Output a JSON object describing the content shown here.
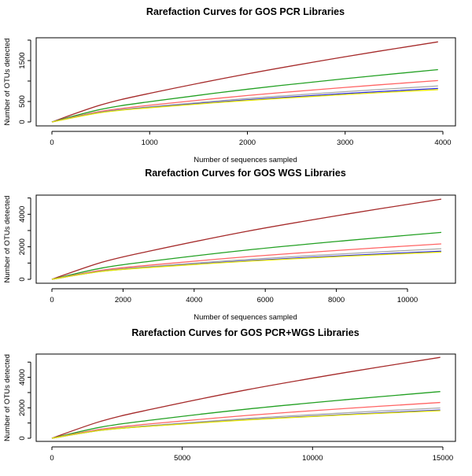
{
  "colors": {
    "brown": "#a52a2a",
    "green": "#22a022",
    "red": "#ff6464",
    "gray": "#a8a8a8",
    "blue": "#2828f0",
    "yellow": "#e6e600"
  },
  "chart_data": [
    {
      "type": "line",
      "title": "Rarefaction Curves for GOS PCR Libraries",
      "xlabel": "Number of sequences sampled",
      "ylabel": "Number of OTUs detected",
      "xticks": [
        0,
        1000,
        2000,
        3000,
        4000
      ],
      "xtick_labels": [
        "0",
        "1000",
        "2000",
        "3000",
        "4000"
      ],
      "yticks": [
        0,
        500,
        1000,
        1500,
        2000
      ],
      "ytick_labels": [
        "0",
        "500",
        "",
        "1500",
        ""
      ],
      "xlim": [
        0,
        4000
      ],
      "ylim": [
        0,
        2000
      ],
      "grid": false,
      "x": [
        0,
        500,
        1000,
        2000,
        3000,
        3950
      ],
      "series": [
        {
          "color": "brown",
          "values": [
            0,
            415,
            699,
            1175,
            1594,
            1958
          ]
        },
        {
          "color": "green",
          "values": [
            0,
            307,
            496,
            799,
            1058,
            1279
          ]
        },
        {
          "color": "red",
          "values": [
            0,
            259,
            409,
            646,
            844,
            1012
          ]
        },
        {
          "color": "gray",
          "values": [
            0,
            239,
            370,
            573,
            740,
            880
          ]
        },
        {
          "color": "blue",
          "values": [
            0,
            232,
            355,
            541,
            694,
            820
          ]
        },
        {
          "color": "yellow",
          "values": [
            0,
            228,
            347,
            525,
            670,
            790
          ]
        }
      ]
    },
    {
      "type": "line",
      "title": "Rarefaction Curves for GOS WGS Libraries",
      "xlabel": "Number of sequences sampled",
      "ylabel": "Number of OTUs detected",
      "xticks": [
        0,
        2000,
        4000,
        6000,
        8000,
        10000
      ],
      "xtick_labels": [
        "0",
        "2000",
        "4000",
        "6000",
        "8000",
        "10000"
      ],
      "yticks": [
        0,
        1000,
        2000,
        3000,
        4000,
        5000
      ],
      "ytick_labels": [
        "0",
        "",
        "2000",
        "",
        "4000",
        ""
      ],
      "xlim": [
        0,
        10950
      ],
      "ylim": [
        0,
        5000
      ],
      "grid": false,
      "x": [
        0,
        1400,
        2800,
        5500,
        8300,
        10950
      ],
      "series": [
        {
          "color": "brown",
          "values": [
            0,
            1045,
            1760,
            2958,
            4013,
            4930
          ]
        },
        {
          "color": "green",
          "values": [
            0,
            692,
            1119,
            1803,
            2385,
            2884
          ]
        },
        {
          "color": "red",
          "values": [
            0,
            557,
            880,
            1389,
            1816,
            2177
          ]
        },
        {
          "color": "gray",
          "values": [
            0,
            511,
            791,
            1223,
            1580,
            1879
          ]
        },
        {
          "color": "blue",
          "values": [
            0,
            490,
            749,
            1142,
            1464,
            1730
          ]
        },
        {
          "color": "yellow",
          "values": [
            0,
            484,
            735,
            1113,
            1420,
            1674
          ]
        }
      ]
    },
    {
      "type": "line",
      "title": "Rarefaction Curves for GOS PCR+WGS Libraries",
      "xlabel": "Number of sequences sampled",
      "ylabel": "Number of OTUs detected",
      "xticks": [
        0,
        5000,
        10000,
        15000
      ],
      "xtick_labels": [
        "0",
        "5000",
        "10000",
        "15000"
      ],
      "yticks": [
        0,
        1000,
        2000,
        3000,
        4000,
        5000
      ],
      "ytick_labels": [
        "0",
        "",
        "2000",
        "",
        "4000",
        ""
      ],
      "xlim": [
        0,
        15000
      ],
      "ylim": [
        0,
        5000
      ],
      "grid": false,
      "x": [
        0,
        1900,
        3800,
        7500,
        11300,
        14900
      ],
      "series": [
        {
          "color": "brown",
          "values": [
            0,
            1126,
            1897,
            3188,
            4325,
            5313
          ]
        },
        {
          "color": "green",
          "values": [
            0,
            736,
            1189,
            1916,
            2535,
            3065
          ]
        },
        {
          "color": "red",
          "values": [
            0,
            601,
            949,
            1498,
            1958,
            2348
          ]
        },
        {
          "color": "gray",
          "values": [
            0,
            541,
            838,
            1295,
            1674,
            1990
          ]
        },
        {
          "color": "blue",
          "values": [
            0,
            524,
            801,
            1221,
            1565,
            1850
          ]
        },
        {
          "color": "yellow",
          "values": [
            0,
            523,
            795,
            1204,
            1536,
            1811
          ]
        }
      ]
    }
  ]
}
